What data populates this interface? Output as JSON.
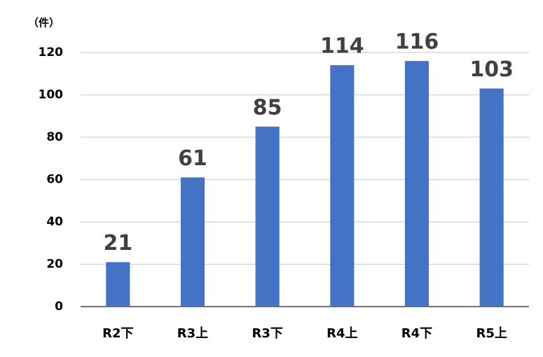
{
  "chart_data": {
    "type": "bar",
    "unit_label": "（件）",
    "categories": [
      "R2下",
      "R3上",
      "R3下",
      "R4上",
      "R4下",
      "R5上"
    ],
    "values": [
      21,
      61,
      85,
      114,
      116,
      103
    ],
    "color": "#4472c4",
    "ylim": [
      0,
      120
    ],
    "yticks": [
      0,
      20,
      40,
      60,
      80,
      100,
      120
    ],
    "grid": true,
    "data_labels": true
  }
}
